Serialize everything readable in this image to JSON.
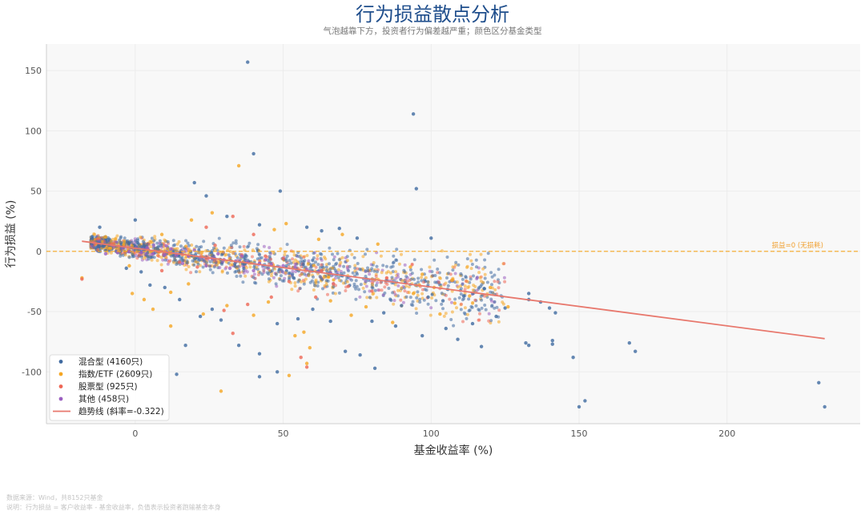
{
  "chart_data": {
    "type": "scatter",
    "title": "行为损益散点分析",
    "subtitle": "气泡越靠下方，投资者行为偏差越严重；颜色区分基金类型",
    "xlabel": "基金收益率 (%)",
    "ylabel": "行为损益 (%)",
    "xlim": [
      -30,
      245
    ],
    "ylim": [
      -143,
      172
    ],
    "x_ticks": [
      0,
      50,
      100,
      150,
      200
    ],
    "y_ticks": [
      -100,
      -50,
      0,
      50,
      100,
      150
    ],
    "grid": true,
    "legend_position": "bottom-left",
    "reference_line": {
      "y": 0,
      "label": "损益=0 (无损耗)",
      "color": "#f5a623"
    },
    "trend_line": {
      "name": "趋势线 (斜率=-0.322)",
      "slope": -0.322,
      "x_start": -18,
      "x_end": 233,
      "color": "#e8786d"
    },
    "series": [
      {
        "name": "混合型 (4160只)",
        "color": "#3f6aa0",
        "points": [
          [
            38,
            157
          ],
          [
            94,
            114
          ],
          [
            40,
            81
          ],
          [
            95,
            52
          ],
          [
            49,
            50
          ],
          [
            20,
            57
          ],
          [
            24,
            46
          ],
          [
            100,
            11
          ],
          [
            -12,
            20
          ],
          [
            0,
            26
          ],
          [
            31,
            29
          ],
          [
            42,
            22
          ],
          [
            58,
            20
          ],
          [
            63,
            17
          ],
          [
            69,
            19
          ],
          [
            75,
            11
          ],
          [
            35,
            -78
          ],
          [
            42,
            -85
          ],
          [
            42,
            -104
          ],
          [
            48,
            -100
          ],
          [
            14,
            -102
          ],
          [
            17,
            -78
          ],
          [
            76,
            -86
          ],
          [
            71,
            -83
          ],
          [
            81,
            -97
          ],
          [
            133,
            -35
          ],
          [
            133,
            -40
          ],
          [
            137,
            -42
          ],
          [
            140,
            -47
          ],
          [
            142,
            -51
          ],
          [
            132,
            -76
          ],
          [
            133,
            -78
          ],
          [
            141,
            -74
          ],
          [
            141,
            -77
          ],
          [
            148,
            -88
          ],
          [
            150,
            -129
          ],
          [
            152,
            -124
          ],
          [
            167,
            -76
          ],
          [
            169,
            -83
          ],
          [
            231,
            -109
          ],
          [
            233,
            -129
          ],
          [
            117,
            -79
          ],
          [
            114,
            -60
          ],
          [
            125,
            -47
          ],
          [
            122,
            -54
          ],
          [
            109,
            -73
          ],
          [
            105,
            -64
          ],
          [
            97,
            -70
          ],
          [
            88,
            -62
          ],
          [
            80,
            -58
          ],
          [
            55,
            -56
          ],
          [
            48,
            -60
          ],
          [
            60,
            -48
          ],
          [
            66,
            -58
          ],
          [
            29,
            -57
          ],
          [
            22,
            -54
          ],
          [
            26,
            -48
          ],
          [
            2,
            -17
          ],
          [
            5,
            -28
          ],
          [
            -3,
            -14
          ],
          [
            10,
            -30
          ],
          [
            15,
            -40
          ],
          [
            90,
            -45
          ],
          [
            84,
            -51
          ],
          [
            104,
            -41
          ],
          [
            99,
            -38
          ],
          [
            111,
            -37
          ],
          [
            118,
            -31
          ]
        ]
      },
      {
        "name": "指数/ETF (2609只)",
        "color": "#f5a623",
        "points": [
          [
            35,
            71
          ],
          [
            26,
            32
          ],
          [
            51,
            23
          ],
          [
            19,
            26
          ],
          [
            -10,
            12
          ],
          [
            9,
            14
          ],
          [
            47,
            18
          ],
          [
            29,
            -116
          ],
          [
            52,
            -103
          ],
          [
            58,
            -93
          ],
          [
            59,
            -80
          ],
          [
            54,
            -70
          ],
          [
            57,
            -67
          ],
          [
            12,
            -62
          ],
          [
            6,
            -48
          ],
          [
            3,
            -40
          ],
          [
            -1,
            -35
          ],
          [
            23,
            -52
          ],
          [
            31,
            -45
          ],
          [
            87,
            -59
          ],
          [
            103,
            -52
          ],
          [
            108,
            -43
          ],
          [
            113,
            -37
          ],
          [
            120,
            -30
          ],
          [
            126,
            -46
          ],
          [
            94,
            -35
          ],
          [
            96,
            -28
          ],
          [
            101,
            -30
          ],
          [
            78,
            -46
          ],
          [
            73,
            -53
          ],
          [
            66,
            -41
          ],
          [
            45,
            -42
          ],
          [
            40,
            -53
          ],
          [
            12,
            -34
          ],
          [
            18,
            -27
          ],
          [
            -18,
            -22
          ],
          [
            -2,
            -12
          ],
          [
            62,
            10
          ],
          [
            70,
            14
          ],
          [
            82,
            6
          ],
          [
            93,
            -13
          ],
          [
            97,
            -19
          ],
          [
            107,
            -24
          ]
        ]
      },
      {
        "name": "股票型 (925只)",
        "color": "#ee6655",
        "points": [
          [
            33,
            29
          ],
          [
            24,
            20
          ],
          [
            40,
            14
          ],
          [
            -18,
            -23
          ],
          [
            56,
            -88
          ],
          [
            58,
            -96
          ],
          [
            33,
            -68
          ],
          [
            30,
            -49
          ],
          [
            38,
            -44
          ],
          [
            46,
            -38
          ],
          [
            52,
            -25
          ],
          [
            61,
            -38
          ],
          [
            67,
            -27
          ],
          [
            72,
            -29
          ],
          [
            80,
            -33
          ],
          [
            85,
            -22
          ],
          [
            63,
            -16
          ],
          [
            9,
            -16
          ],
          [
            15,
            -9
          ],
          [
            21,
            -13
          ],
          [
            44,
            -4
          ],
          [
            50,
            -6
          ],
          [
            36,
            -3
          ],
          [
            27,
            5
          ]
        ]
      },
      {
        "name": "其他 (458只)",
        "color": "#9b5fc0",
        "points": [
          [
            -10,
            -2
          ],
          [
            -6,
            -1
          ],
          [
            -2,
            0
          ],
          [
            2,
            -1
          ],
          [
            6,
            -2
          ],
          [
            10,
            -3
          ],
          [
            14,
            -3
          ],
          [
            18,
            -4
          ],
          [
            22,
            -5
          ],
          [
            26,
            -6
          ],
          [
            30,
            -7
          ],
          [
            34,
            -8
          ],
          [
            38,
            -9
          ],
          [
            42,
            -10
          ],
          [
            46,
            -11
          ],
          [
            50,
            -12
          ],
          [
            54,
            -13
          ],
          [
            58,
            -15
          ],
          [
            62,
            -17
          ],
          [
            66,
            -18
          ],
          [
            12,
            2
          ],
          [
            20,
            1
          ],
          [
            28,
            -2
          ],
          [
            36,
            -4
          ],
          [
            44,
            -7
          ],
          [
            4,
            3
          ],
          [
            16,
            -10
          ],
          [
            24,
            -12
          ],
          [
            32,
            -14
          ],
          [
            40,
            -16
          ]
        ]
      }
    ]
  },
  "footer": {
    "source": "数据来源：Wind，共8152只基金",
    "note": "说明：行为损益 = 客户收益率 - 基金收益率，负值表示投资者跑输基金本身"
  }
}
